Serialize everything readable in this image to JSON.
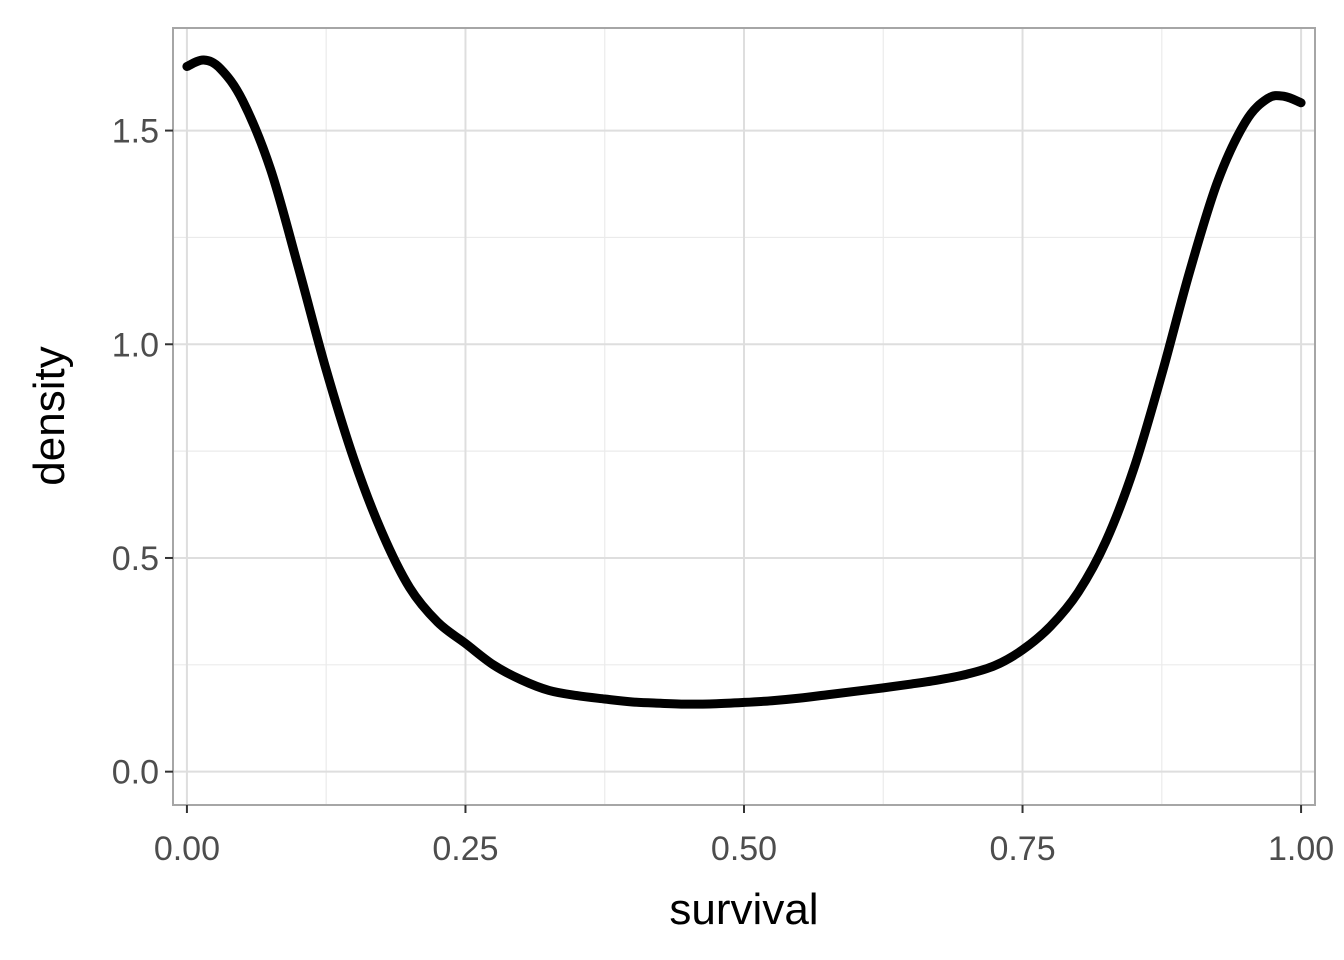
{
  "chart_data": {
    "type": "line",
    "xlabel": "survival",
    "ylabel": "density",
    "xlim": [
      -0.0125,
      1.0125
    ],
    "ylim": [
      -0.078,
      1.74
    ],
    "x_ticks": [
      0,
      0.25,
      0.5,
      0.75,
      1
    ],
    "x_tick_labels": [
      "0.00",
      "0.25",
      "0.50",
      "0.75",
      "1.00"
    ],
    "y_ticks": [
      0,
      0.5,
      1,
      1.5
    ],
    "y_tick_labels": [
      "0.0",
      "0.5",
      "1.0",
      "1.5"
    ],
    "grid": true,
    "series": [
      {
        "x": [
          0,
          0.015,
          0.03,
          0.05,
          0.075,
          0.1,
          0.125,
          0.15,
          0.175,
          0.2,
          0.225,
          0.25,
          0.275,
          0.3,
          0.325,
          0.35,
          0.375,
          0.4,
          0.425,
          0.45,
          0.475,
          0.5,
          0.525,
          0.55,
          0.575,
          0.6,
          0.625,
          0.65,
          0.675,
          0.7,
          0.725,
          0.75,
          0.775,
          0.8,
          0.825,
          0.85,
          0.875,
          0.9,
          0.925,
          0.95,
          0.97,
          0.985,
          1
        ],
        "y": [
          1.65,
          1.665,
          1.645,
          1.57,
          1.41,
          1.18,
          0.94,
          0.73,
          0.56,
          0.43,
          0.35,
          0.3,
          0.25,
          0.215,
          0.19,
          0.178,
          0.17,
          0.163,
          0.16,
          0.158,
          0.159,
          0.162,
          0.166,
          0.172,
          0.18,
          0.188,
          0.196,
          0.205,
          0.215,
          0.228,
          0.248,
          0.285,
          0.34,
          0.42,
          0.54,
          0.71,
          0.93,
          1.17,
          1.38,
          1.52,
          1.575,
          1.58,
          1.565
        ],
        "color": "#000000"
      }
    ]
  }
}
